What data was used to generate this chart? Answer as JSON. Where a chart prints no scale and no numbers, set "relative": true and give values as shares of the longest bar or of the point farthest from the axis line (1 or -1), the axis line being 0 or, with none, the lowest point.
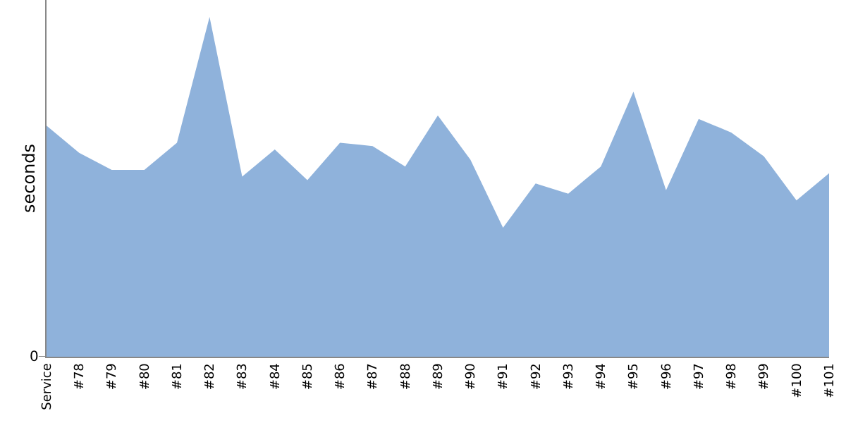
{
  "chart_data": {
    "type": "area",
    "relative": true,
    "ylabel": "seconds",
    "annotations": [
      "0"
    ],
    "categories": [
      "Service",
      "#78",
      "#79",
      "#80",
      "#81",
      "#82",
      "#83",
      "#84",
      "#85",
      "#86",
      "#87",
      "#88",
      "#89",
      "#90",
      "#91",
      "#92",
      "#93",
      "#94",
      "#95",
      "#96",
      "#97",
      "#98",
      "#99",
      "#100",
      "#101"
    ],
    "series": [
      {
        "color": "#8fb2db",
        "values": [
          0.68,
          0.6,
          0.55,
          0.55,
          0.63,
          1,
          0.53,
          0.61,
          0.52,
          0.63,
          0.62,
          0.56,
          0.71,
          0.58,
          0.38,
          0.51,
          0.48,
          0.56,
          0.78,
          0.49,
          0.7,
          0.66,
          0.59,
          0.46,
          0.54
        ]
      }
    ]
  }
}
